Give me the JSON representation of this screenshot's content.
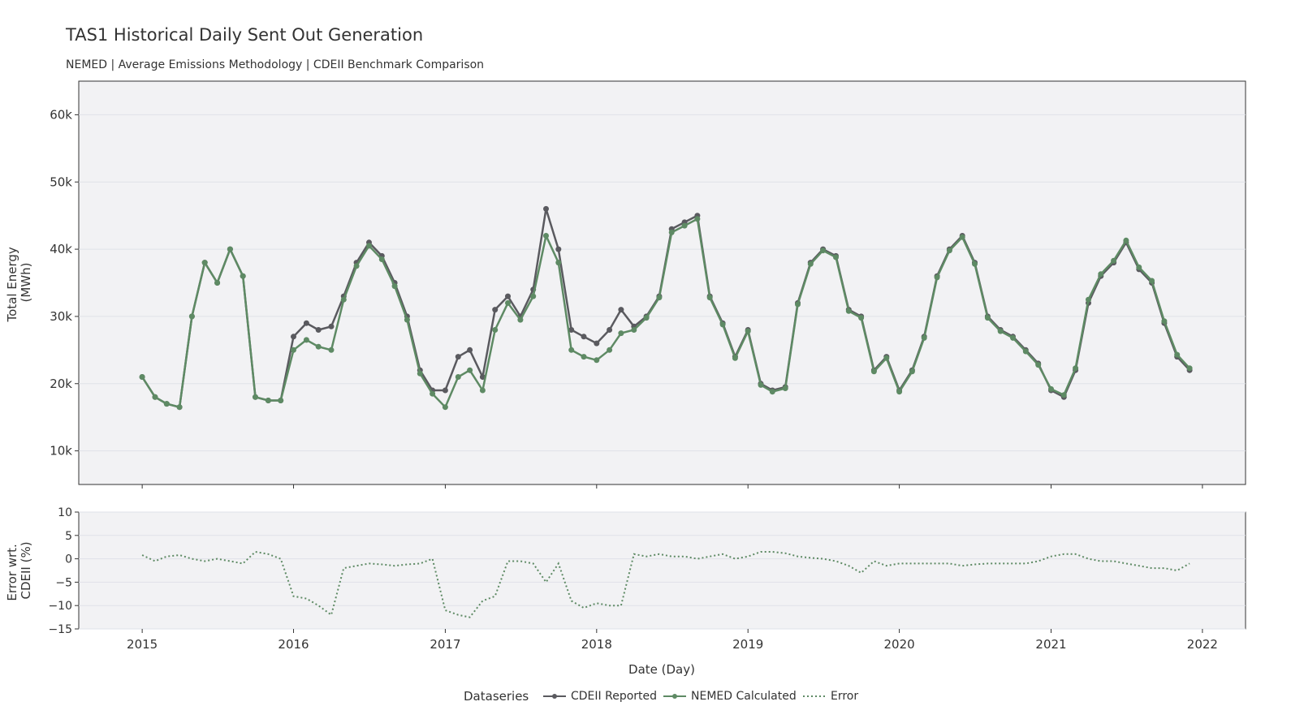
{
  "chart_data": {
    "type": "line",
    "title": "TAS1 Historical Daily Sent Out Generation",
    "subtitle": "NEMED | Average Emissions Methodology | CDEII Benchmark Comparison",
    "xlabel": "Date (Day)",
    "x_ticks": [
      "2015",
      "2016",
      "2017",
      "2018",
      "2019",
      "2020",
      "2021",
      "2022"
    ],
    "xlim": [
      "2014-08-01",
      "2022-04-15"
    ],
    "top_panel": {
      "ylabel_lines": [
        "Total Energy",
        "(MWh)"
      ],
      "ylim": [
        5000,
        65000
      ],
      "y_ticks": [
        10000,
        20000,
        30000,
        40000,
        50000,
        60000
      ],
      "y_tick_labels": [
        "10k",
        "20k",
        "30k",
        "40k",
        "50k",
        "60k"
      ]
    },
    "bottom_panel": {
      "ylabel_lines": [
        "Error wrt.",
        "CDEII (%)"
      ],
      "ylim": [
        -15,
        10
      ],
      "y_ticks": [
        -15,
        -10,
        -5,
        0,
        5,
        10
      ],
      "y_tick_labels": [
        "−15",
        "−10",
        "−5",
        "0",
        "5",
        "10"
      ]
    },
    "legend": {
      "title": "Dataseries",
      "placement": "bottom-center"
    },
    "series": [
      {
        "name": "CDEII Reported",
        "panel": "top",
        "color": "#5a5a5f",
        "style": "line+markers",
        "x": [
          "2015-01-01",
          "2015-02-01",
          "2015-03-01",
          "2015-04-01",
          "2015-05-01",
          "2015-06-01",
          "2015-07-01",
          "2015-08-01",
          "2015-09-01",
          "2015-10-01",
          "2015-11-01",
          "2015-12-01",
          "2016-01-01",
          "2016-02-01",
          "2016-03-01",
          "2016-04-01",
          "2016-05-01",
          "2016-06-01",
          "2016-07-01",
          "2016-08-01",
          "2016-09-01",
          "2016-10-01",
          "2016-11-01",
          "2016-12-01",
          "2017-01-01",
          "2017-02-01",
          "2017-03-01",
          "2017-04-01",
          "2017-05-01",
          "2017-06-01",
          "2017-07-01",
          "2017-08-01",
          "2017-09-01",
          "2017-10-01",
          "2017-11-01",
          "2017-12-01",
          "2018-01-01",
          "2018-02-01",
          "2018-03-01",
          "2018-04-01",
          "2018-05-01",
          "2018-06-01",
          "2018-07-01",
          "2018-08-01",
          "2018-09-01",
          "2018-10-01",
          "2018-11-01",
          "2018-12-01",
          "2019-01-01",
          "2019-02-01",
          "2019-03-01",
          "2019-04-01",
          "2019-05-01",
          "2019-06-01",
          "2019-07-01",
          "2019-08-01",
          "2019-09-01",
          "2019-10-01",
          "2019-11-01",
          "2019-12-01",
          "2020-01-01",
          "2020-02-01",
          "2020-03-01",
          "2020-04-01",
          "2020-05-01",
          "2020-06-01",
          "2020-07-01",
          "2020-08-01",
          "2020-09-01",
          "2020-10-01",
          "2020-11-01",
          "2020-12-01",
          "2021-01-01",
          "2021-02-01",
          "2021-03-01",
          "2021-04-01",
          "2021-05-01",
          "2021-06-01",
          "2021-07-01",
          "2021-08-01",
          "2021-09-01",
          "2021-10-01",
          "2021-11-01",
          "2021-12-01"
        ],
        "y": [
          21000,
          18000,
          17000,
          16500,
          30000,
          38000,
          35000,
          40000,
          36000,
          18000,
          17500,
          17500,
          27000,
          29000,
          28000,
          28500,
          33000,
          38000,
          41000,
          39000,
          35000,
          30000,
          22000,
          19000,
          19000,
          24000,
          25000,
          21000,
          31000,
          33000,
          30000,
          34000,
          46000,
          40000,
          28000,
          27000,
          26000,
          28000,
          31000,
          28500,
          30000,
          33000,
          43000,
          44000,
          45000,
          33000,
          29000,
          24000,
          28000,
          20000,
          19000,
          19500,
          32000,
          38000,
          40000,
          39000,
          31000,
          30000,
          22000,
          24000,
          19000,
          22000,
          27000,
          36000,
          40000,
          42000,
          38000,
          30000,
          28000,
          27000,
          25000,
          23000,
          19000,
          18000,
          22000,
          32000,
          36000,
          38000,
          41000,
          37000,
          35000,
          29000,
          24000,
          22000
        ]
      },
      {
        "name": "NEMED Calculated",
        "panel": "top",
        "color": "#5e8a64",
        "style": "line+markers",
        "x": [
          "2015-01-01",
          "2015-02-01",
          "2015-03-01",
          "2015-04-01",
          "2015-05-01",
          "2015-06-01",
          "2015-07-01",
          "2015-08-01",
          "2015-09-01",
          "2015-10-01",
          "2015-11-01",
          "2015-12-01",
          "2016-01-01",
          "2016-02-01",
          "2016-03-01",
          "2016-04-01",
          "2016-05-01",
          "2016-06-01",
          "2016-07-01",
          "2016-08-01",
          "2016-09-01",
          "2016-10-01",
          "2016-11-01",
          "2016-12-01",
          "2017-01-01",
          "2017-02-01",
          "2017-03-01",
          "2017-04-01",
          "2017-05-01",
          "2017-06-01",
          "2017-07-01",
          "2017-08-01",
          "2017-09-01",
          "2017-10-01",
          "2017-11-01",
          "2017-12-01",
          "2018-01-01",
          "2018-02-01",
          "2018-03-01",
          "2018-04-01",
          "2018-05-01",
          "2018-06-01",
          "2018-07-01",
          "2018-08-01",
          "2018-09-01",
          "2018-10-01",
          "2018-11-01",
          "2018-12-01",
          "2019-01-01",
          "2019-02-01",
          "2019-03-01",
          "2019-04-01",
          "2019-05-01",
          "2019-06-01",
          "2019-07-01",
          "2019-08-01",
          "2019-09-01",
          "2019-10-01",
          "2019-11-01",
          "2019-12-01",
          "2020-01-01",
          "2020-02-01",
          "2020-03-01",
          "2020-04-01",
          "2020-05-01",
          "2020-06-01",
          "2020-07-01",
          "2020-08-01",
          "2020-09-01",
          "2020-10-01",
          "2020-11-01",
          "2020-12-01",
          "2021-01-01",
          "2021-02-01",
          "2021-03-01",
          "2021-04-01",
          "2021-05-01",
          "2021-06-01",
          "2021-07-01",
          "2021-08-01",
          "2021-09-01",
          "2021-10-01",
          "2021-11-01",
          "2021-12-01"
        ],
        "y": [
          21000,
          18000,
          17000,
          16500,
          30000,
          38000,
          35000,
          40000,
          36000,
          18000,
          17500,
          17500,
          25000,
          26500,
          25500,
          25000,
          32500,
          37500,
          40500,
          38500,
          34500,
          29500,
          21500,
          18500,
          16500,
          21000,
          22000,
          19000,
          28000,
          32000,
          29500,
          33000,
          42000,
          38000,
          25000,
          24000,
          23500,
          25000,
          27500,
          28000,
          29800,
          32800,
          42500,
          43500,
          44500,
          32800,
          28800,
          23800,
          27800,
          19800,
          18800,
          19300,
          31800,
          37800,
          39800,
          38800,
          30800,
          29800,
          21800,
          23800,
          18800,
          21800,
          26800,
          35800,
          39800,
          41800,
          37800,
          29800,
          27800,
          26800,
          24800,
          22800,
          19200,
          18300,
          22300,
          32500,
          36300,
          38300,
          41300,
          37300,
          35300,
          29300,
          24300,
          22300
        ]
      },
      {
        "name": "Error",
        "panel": "bottom",
        "color": "#5e8a64",
        "style": "dotted-line",
        "x": [
          "2015-01-01",
          "2015-02-01",
          "2015-03-01",
          "2015-04-01",
          "2015-05-01",
          "2015-06-01",
          "2015-07-01",
          "2015-08-01",
          "2015-09-01",
          "2015-10-01",
          "2015-11-01",
          "2015-12-01",
          "2016-01-01",
          "2016-02-01",
          "2016-03-01",
          "2016-04-01",
          "2016-05-01",
          "2016-06-01",
          "2016-07-01",
          "2016-08-01",
          "2016-09-01",
          "2016-10-01",
          "2016-11-01",
          "2016-12-01",
          "2017-01-01",
          "2017-02-01",
          "2017-03-01",
          "2017-04-01",
          "2017-05-01",
          "2017-06-01",
          "2017-07-01",
          "2017-08-01",
          "2017-09-01",
          "2017-10-01",
          "2017-11-01",
          "2017-12-01",
          "2018-01-01",
          "2018-02-01",
          "2018-03-01",
          "2018-04-01",
          "2018-05-01",
          "2018-06-01",
          "2018-07-01",
          "2018-08-01",
          "2018-09-01",
          "2018-10-01",
          "2018-11-01",
          "2018-12-01",
          "2019-01-01",
          "2019-02-01",
          "2019-03-01",
          "2019-04-01",
          "2019-05-01",
          "2019-06-01",
          "2019-07-01",
          "2019-08-01",
          "2019-09-01",
          "2019-10-01",
          "2019-11-01",
          "2019-12-01",
          "2020-01-01",
          "2020-02-01",
          "2020-03-01",
          "2020-04-01",
          "2020-05-01",
          "2020-06-01",
          "2020-07-01",
          "2020-08-01",
          "2020-09-01",
          "2020-10-01",
          "2020-11-01",
          "2020-12-01",
          "2021-01-01",
          "2021-02-01",
          "2021-03-01",
          "2021-04-01",
          "2021-05-01",
          "2021-06-01",
          "2021-07-01",
          "2021-08-01",
          "2021-09-01",
          "2021-10-01",
          "2021-11-01",
          "2021-12-01"
        ],
        "y": [
          0.8,
          -0.5,
          0.5,
          0.8,
          0,
          -0.5,
          0,
          -0.5,
          -1,
          1.5,
          1,
          0,
          -8,
          -8.5,
          -10,
          -12,
          -2,
          -1.5,
          -1,
          -1.2,
          -1.5,
          -1.2,
          -1,
          0,
          -11,
          -12,
          -12.5,
          -9,
          -8,
          -0.5,
          -0.5,
          -1,
          -5,
          -1,
          -9,
          -10.5,
          -9.5,
          -10,
          -10,
          1,
          0.5,
          1,
          0.5,
          0.5,
          0,
          0.5,
          1,
          0,
          0.5,
          1.5,
          1.5,
          1.2,
          0.5,
          0.2,
          0,
          -0.5,
          -1.5,
          -3,
          -0.5,
          -1.5,
          -1,
          -1,
          -1,
          -1,
          -1,
          -1.5,
          -1.2,
          -1,
          -1,
          -1,
          -1,
          -0.5,
          0.5,
          1,
          1,
          0,
          -0.5,
          -0.5,
          -1,
          -1.5,
          -2,
          -2,
          -2.5,
          -1
        ]
      }
    ]
  }
}
